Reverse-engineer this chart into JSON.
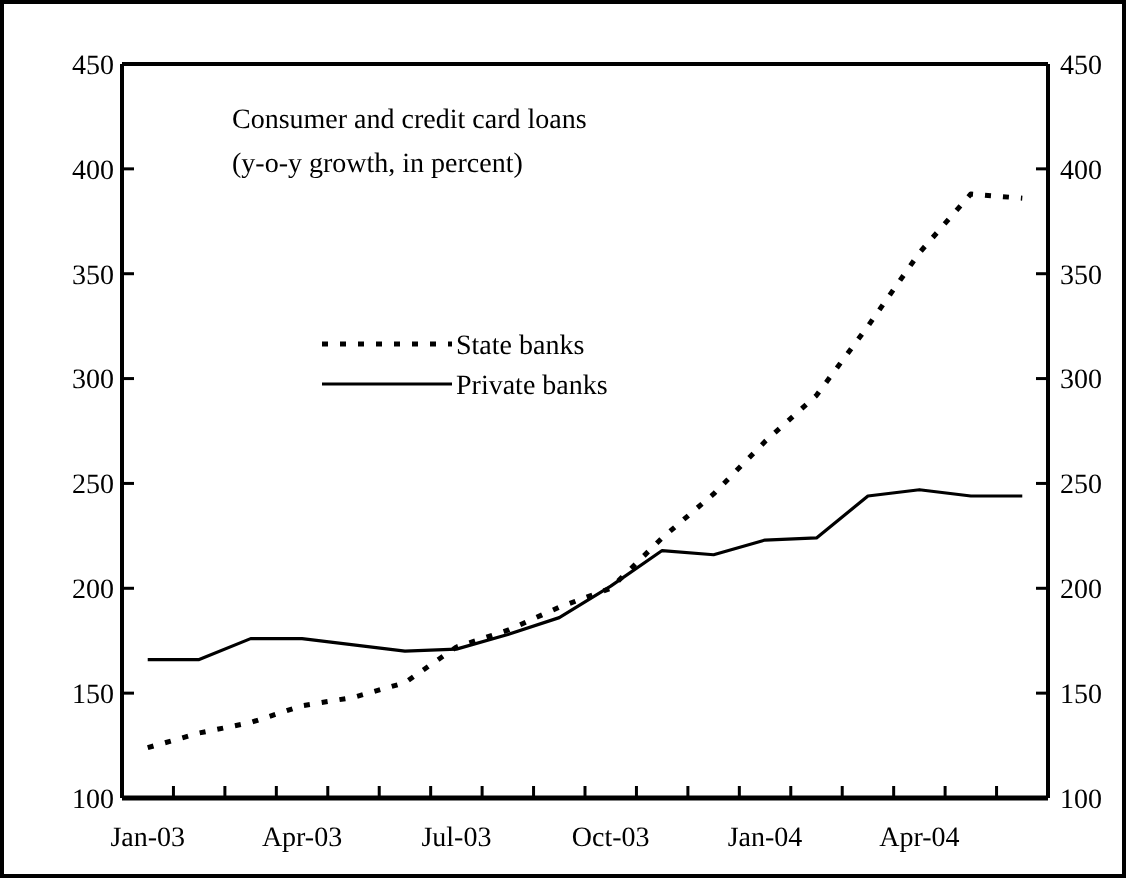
{
  "chart_data": {
    "type": "line",
    "title": "Consumer and credit card loans\n(y-o-y growth, in percent)",
    "categories": [
      "Jan-03",
      null,
      null,
      "Apr-03",
      null,
      null,
      "Jul-03",
      null,
      null,
      "Oct-03",
      null,
      null,
      "Jan-04",
      null,
      null,
      "Apr-04",
      null,
      null
    ],
    "series": [
      {
        "name": "State banks",
        "color": "#000000",
        "line_style": "dotted",
        "values": [
          124,
          131,
          136,
          144,
          148,
          155,
          172,
          180,
          191,
          200,
          224,
          245,
          270,
          292,
          325,
          360,
          388,
          386
        ]
      },
      {
        "name": "Private banks",
        "color": "#000000",
        "line_style": "solid",
        "values": [
          166,
          166,
          176,
          176,
          173,
          170,
          171,
          178,
          186,
          201,
          218,
          216,
          223,
          224,
          244,
          247,
          244,
          244
        ]
      }
    ],
    "ylim": [
      100,
      450
    ],
    "yticks": [
      100,
      150,
      200,
      250,
      300,
      350,
      400,
      450
    ],
    "y2lim": [
      100,
      450
    ],
    "y2ticks": [
      100,
      150,
      200,
      250,
      300,
      350,
      400,
      450
    ],
    "grid": false,
    "legend": "top left",
    "marker": "none"
  }
}
